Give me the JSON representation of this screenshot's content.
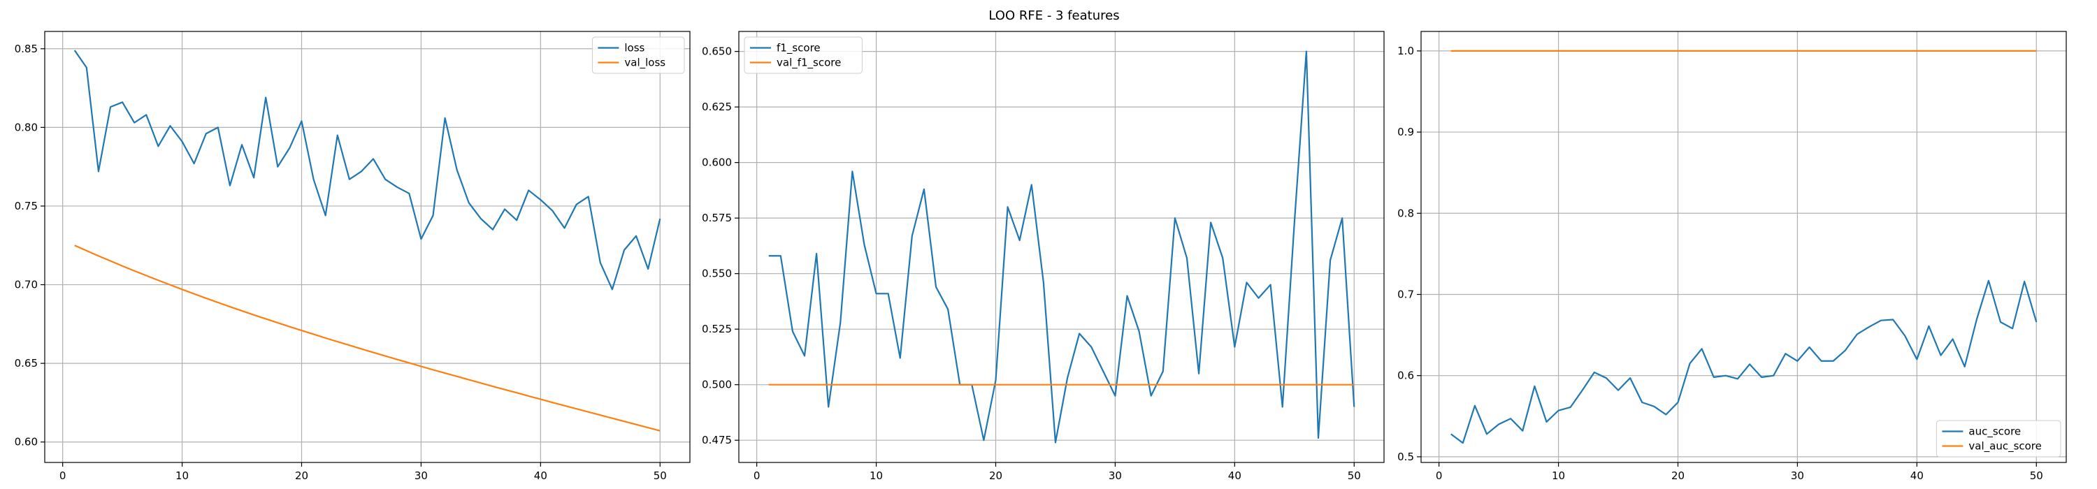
{
  "figure": {
    "title": "LOO RFE - 3 features"
  },
  "colors": {
    "series1": "#1f77b4",
    "series2": "#ff7f0e",
    "grid": "#b0b0b0",
    "axis": "#000000"
  },
  "chart_data": [
    {
      "type": "line",
      "xlim": [
        -1.5,
        52.5
      ],
      "ylim": [
        0.587,
        0.861
      ],
      "xticks": [
        0,
        10,
        20,
        30,
        40,
        50
      ],
      "yticks": [
        0.6,
        0.65,
        0.7,
        0.75,
        0.8,
        0.85
      ],
      "ytick_labels": [
        "0.60",
        "0.65",
        "0.70",
        "0.75",
        "0.80",
        "0.85"
      ],
      "grid": true,
      "legend_position": "top-right",
      "x": [
        1,
        2,
        3,
        4,
        5,
        6,
        7,
        8,
        9,
        10,
        11,
        12,
        13,
        14,
        15,
        16,
        17,
        18,
        19,
        20,
        21,
        22,
        23,
        24,
        25,
        26,
        27,
        28,
        29,
        30,
        31,
        32,
        33,
        34,
        35,
        36,
        37,
        38,
        39,
        40,
        41,
        42,
        43,
        44,
        45,
        46,
        47,
        48,
        49,
        50
      ],
      "series": [
        {
          "name": "loss",
          "color": "#1f77b4",
          "values": [
            0.849,
            0.838,
            0.772,
            0.813,
            0.816,
            0.803,
            0.808,
            0.788,
            0.801,
            0.791,
            0.777,
            0.796,
            0.8,
            0.763,
            0.789,
            0.768,
            0.819,
            0.775,
            0.787,
            0.804,
            0.767,
            0.744,
            0.795,
            0.767,
            0.772,
            0.78,
            0.767,
            0.762,
            0.758,
            0.729,
            0.744,
            0.806,
            0.773,
            0.752,
            0.742,
            0.735,
            0.748,
            0.741,
            0.76,
            0.754,
            0.747,
            0.736,
            0.751,
            0.756,
            0.714,
            0.697,
            0.722,
            0.731,
            0.71,
            0.742
          ]
        },
        {
          "name": "val_loss",
          "color": "#ff7f0e",
          "values": [
            0.725,
            0.7216,
            0.7183,
            0.7151,
            0.7119,
            0.7088,
            0.7058,
            0.7028,
            0.6999,
            0.697,
            0.6942,
            0.6914,
            0.6887,
            0.686,
            0.6834,
            0.6808,
            0.6783,
            0.6758,
            0.6733,
            0.6709,
            0.6685,
            0.6661,
            0.6638,
            0.6615,
            0.6592,
            0.6569,
            0.6547,
            0.6525,
            0.6503,
            0.6481,
            0.6459,
            0.6438,
            0.6417,
            0.6396,
            0.6375,
            0.6354,
            0.6333,
            0.6313,
            0.6292,
            0.6272,
            0.6251,
            0.6231,
            0.6211,
            0.6191,
            0.6171,
            0.6151,
            0.6131,
            0.6111,
            0.6091,
            0.6071
          ]
        }
      ]
    },
    {
      "type": "line",
      "xlim": [
        -1.5,
        52.5
      ],
      "ylim": [
        0.465,
        0.659
      ],
      "xticks": [
        0,
        10,
        20,
        30,
        40,
        50
      ],
      "yticks": [
        0.475,
        0.5,
        0.525,
        0.55,
        0.575,
        0.6,
        0.625,
        0.65
      ],
      "ytick_labels": [
        "0.475",
        "0.500",
        "0.525",
        "0.550",
        "0.575",
        "0.600",
        "0.625",
        "0.650"
      ],
      "grid": true,
      "legend_position": "top-left",
      "x": [
        1,
        2,
        3,
        4,
        5,
        6,
        7,
        8,
        9,
        10,
        11,
        12,
        13,
        14,
        15,
        16,
        17,
        18,
        19,
        20,
        21,
        22,
        23,
        24,
        25,
        26,
        27,
        28,
        29,
        30,
        31,
        32,
        33,
        34,
        35,
        36,
        37,
        38,
        39,
        40,
        41,
        42,
        43,
        44,
        45,
        46,
        47,
        48,
        49,
        50
      ],
      "series": [
        {
          "name": "f1_score",
          "color": "#1f77b4",
          "values": [
            0.558,
            0.558,
            0.524,
            0.513,
            0.559,
            0.49,
            0.528,
            0.596,
            0.563,
            0.541,
            0.541,
            0.512,
            0.567,
            0.588,
            0.544,
            0.534,
            0.5,
            0.5,
            0.475,
            0.502,
            0.58,
            0.565,
            0.59,
            0.546,
            0.474,
            0.503,
            0.523,
            0.517,
            0.506,
            0.495,
            0.54,
            0.524,
            0.495,
            0.506,
            0.575,
            0.557,
            0.505,
            0.573,
            0.557,
            0.517,
            0.546,
            0.539,
            0.545,
            0.49,
            0.573,
            0.65,
            0.476,
            0.556,
            0.575,
            0.49
          ]
        },
        {
          "name": "val_f1_score",
          "color": "#ff7f0e",
          "values": [
            0.5,
            0.5,
            0.5,
            0.5,
            0.5,
            0.5,
            0.5,
            0.5,
            0.5,
            0.5,
            0.5,
            0.5,
            0.5,
            0.5,
            0.5,
            0.5,
            0.5,
            0.5,
            0.5,
            0.5,
            0.5,
            0.5,
            0.5,
            0.5,
            0.5,
            0.5,
            0.5,
            0.5,
            0.5,
            0.5,
            0.5,
            0.5,
            0.5,
            0.5,
            0.5,
            0.5,
            0.5,
            0.5,
            0.5,
            0.5,
            0.5,
            0.5,
            0.5,
            0.5,
            0.5,
            0.5,
            0.5,
            0.5,
            0.5,
            0.5
          ]
        }
      ]
    },
    {
      "type": "line",
      "xlim": [
        -1.5,
        52.5
      ],
      "ylim": [
        0.493,
        1.024
      ],
      "xticks": [
        0,
        10,
        20,
        30,
        40,
        50
      ],
      "yticks": [
        0.5,
        0.6,
        0.7,
        0.8,
        0.9,
        1.0
      ],
      "ytick_labels": [
        "0.5",
        "0.6",
        "0.7",
        "0.8",
        "0.9",
        "1.0"
      ],
      "grid": true,
      "legend_position": "bottom-right",
      "x": [
        1,
        2,
        3,
        4,
        5,
        6,
        7,
        8,
        9,
        10,
        11,
        12,
        13,
        14,
        15,
        16,
        17,
        18,
        19,
        20,
        21,
        22,
        23,
        24,
        25,
        26,
        27,
        28,
        29,
        30,
        31,
        32,
        33,
        34,
        35,
        36,
        37,
        38,
        39,
        40,
        41,
        42,
        43,
        44,
        45,
        46,
        47,
        48,
        49,
        50
      ],
      "series": [
        {
          "name": "auc_score",
          "color": "#1f77b4",
          "values": [
            0.528,
            0.517,
            0.563,
            0.528,
            0.54,
            0.547,
            0.532,
            0.587,
            0.543,
            0.557,
            0.561,
            0.582,
            0.604,
            0.597,
            0.582,
            0.597,
            0.567,
            0.562,
            0.552,
            0.567,
            0.615,
            0.633,
            0.598,
            0.6,
            0.596,
            0.614,
            0.598,
            0.6,
            0.627,
            0.618,
            0.635,
            0.618,
            0.618,
            0.631,
            0.651,
            0.66,
            0.668,
            0.669,
            0.649,
            0.62,
            0.661,
            0.625,
            0.645,
            0.611,
            0.669,
            0.717,
            0.666,
            0.658,
            0.716,
            0.666
          ]
        },
        {
          "name": "val_auc_score",
          "color": "#ff7f0e",
          "values": [
            1.0,
            1.0,
            1.0,
            1.0,
            1.0,
            1.0,
            1.0,
            1.0,
            1.0,
            1.0,
            1.0,
            1.0,
            1.0,
            1.0,
            1.0,
            1.0,
            1.0,
            1.0,
            1.0,
            1.0,
            1.0,
            1.0,
            1.0,
            1.0,
            1.0,
            1.0,
            1.0,
            1.0,
            1.0,
            1.0,
            1.0,
            1.0,
            1.0,
            1.0,
            1.0,
            1.0,
            1.0,
            1.0,
            1.0,
            1.0,
            1.0,
            1.0,
            1.0,
            1.0,
            1.0,
            1.0,
            1.0,
            1.0,
            1.0,
            1.0
          ]
        }
      ]
    }
  ]
}
